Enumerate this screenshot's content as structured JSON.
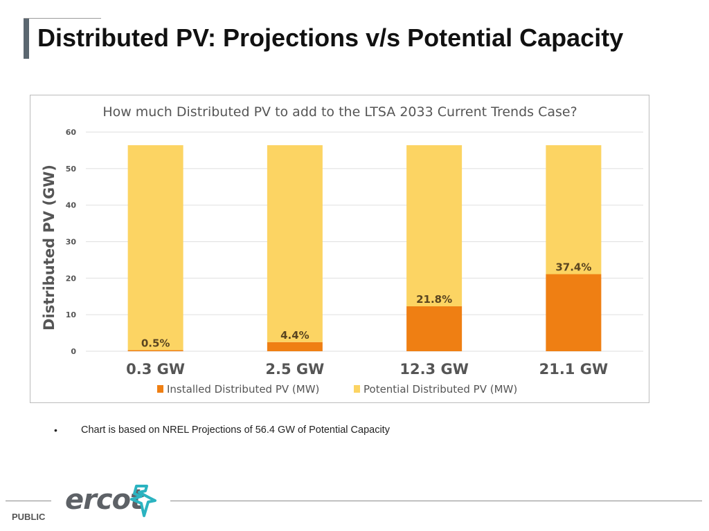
{
  "slide": {
    "title": "Distributed PV: Projections v/s Potential Capacity",
    "bullet": "•",
    "note": "Chart is based on NREL Projections of 56.4 GW of Potential Capacity",
    "footer_label": "PUBLIC",
    "logo_text": "ercot"
  },
  "chart_data": {
    "type": "bar",
    "stacked": true,
    "title": "How much Distributed PV to add to the LTSA 2033 Current Trends Case?",
    "ylabel": "Distributed PV (GW)",
    "xlabel": "",
    "ylim": [
      0,
      60
    ],
    "yticks": [
      "0",
      "10",
      "20",
      "30",
      "40",
      "50",
      "60"
    ],
    "grid": true,
    "legend_placement": "bottom",
    "categories": [
      "0.3 GW",
      "2.5 GW",
      "12.3 GW",
      "21.1 GW"
    ],
    "series": [
      {
        "name": "Installed Distributed PV (MW)",
        "color": "#ef7f13",
        "values": [
          0.3,
          2.5,
          12.3,
          21.1
        ]
      },
      {
        "name": "Potential Distributed PV (MW)",
        "color": "#fcd463",
        "values": [
          56.1,
          53.9,
          44.1,
          35.3
        ]
      }
    ],
    "data_labels": [
      "0.5%",
      "4.4%",
      "21.8%",
      "37.4%"
    ]
  }
}
